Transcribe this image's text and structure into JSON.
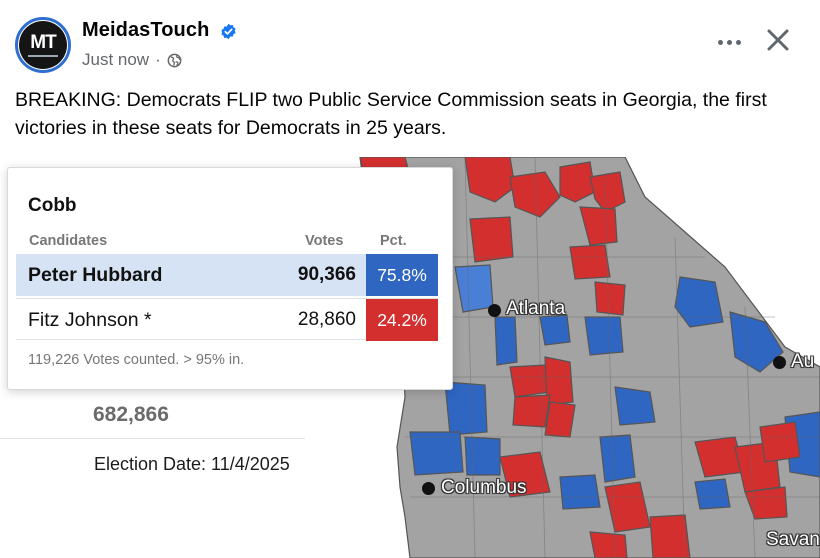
{
  "post": {
    "page_name": "MeidasTouch",
    "avatar_text": "MT",
    "timestamp": "Just now",
    "separator": "·",
    "text": "BREAKING: Democrats FLIP two Public Service Commission seats in Georgia, the first victories in these seats for Democrats in 25 years."
  },
  "icons": {
    "verified": "verified-badge-icon",
    "audience": "globe-icon",
    "more": "more-options-icon",
    "close": "close-icon"
  },
  "colors": {
    "verified_blue": "#1877f2",
    "democrat_blue": "#2f66c2",
    "republican_red": "#d42f2f",
    "no_data_gray": "#a3a3a3",
    "highlight_row": "#d6e3f4"
  },
  "results_panel": {
    "total_votes": "682,866",
    "election_date": "Election Date: 11/4/2025"
  },
  "popup": {
    "county": "Cobb",
    "headers": {
      "candidates": "Candidates",
      "votes": "Votes",
      "pct": "Pct."
    },
    "rows": [
      {
        "candidate": "Peter Hubbard",
        "votes": "90,366",
        "pct": "75.8%"
      },
      {
        "candidate": "Fitz Johnson *",
        "votes": "28,860",
        "pct": "24.2%"
      }
    ],
    "footer": "119,226 Votes counted. > 95% in."
  },
  "map": {
    "cities": [
      {
        "name": "Atlanta"
      },
      {
        "name": "Columbus"
      },
      {
        "name": "Au"
      },
      {
        "name": "Savan"
      }
    ]
  }
}
